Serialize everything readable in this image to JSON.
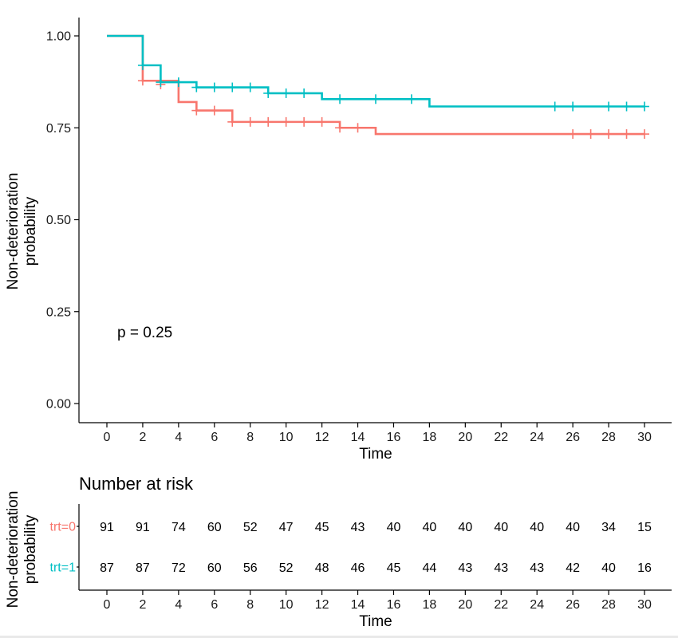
{
  "chart_data": [
    {
      "type": "line",
      "subtype": "kaplan-meier",
      "ylabel_line1": "Non-deterioration",
      "ylabel_line2": "probability",
      "xlabel": "Time",
      "xlim": [
        0,
        30
      ],
      "ylim": [
        0,
        1
      ],
      "x_ticks": [
        "0",
        "2",
        "4",
        "6",
        "8",
        "10",
        "12",
        "14",
        "16",
        "18",
        "20",
        "22",
        "24",
        "26",
        "28",
        "30"
      ],
      "y_ticks": [
        {
          "value": 0,
          "label": "0.00"
        },
        {
          "value": 0.25,
          "label": "0.25"
        },
        {
          "value": 0.5,
          "label": "0.50"
        },
        {
          "value": 0.75,
          "label": "0.75"
        },
        {
          "value": 1,
          "label": "1.00"
        }
      ],
      "annotation": "p = 0.25",
      "grid": false,
      "legend": "none",
      "series": [
        {
          "color": "#F8766D",
          "steps": [
            [
              0,
              1.0
            ],
            [
              2,
              0.878
            ],
            [
              4,
              0.82
            ],
            [
              5,
              0.797
            ],
            [
              7,
              0.766
            ],
            [
              13,
              0.75
            ],
            [
              15,
              0.733
            ],
            [
              30,
              0.733
            ]
          ],
          "censored": [
            [
              2,
              0.878
            ],
            [
              3,
              0.868
            ],
            [
              5,
              0.797
            ],
            [
              6,
              0.797
            ],
            [
              7,
              0.766
            ],
            [
              8,
              0.766
            ],
            [
              9,
              0.766
            ],
            [
              10,
              0.766
            ],
            [
              11,
              0.766
            ],
            [
              12,
              0.766
            ],
            [
              13,
              0.75
            ],
            [
              14,
              0.75
            ],
            [
              26,
              0.733
            ],
            [
              27,
              0.733
            ],
            [
              28,
              0.733
            ],
            [
              29,
              0.733
            ],
            [
              30,
              0.733
            ]
          ]
        },
        {
          "color": "#00BFC4",
          "steps": [
            [
              0,
              1.0
            ],
            [
              2,
              0.92
            ],
            [
              3,
              0.874
            ],
            [
              5,
              0.86
            ],
            [
              9,
              0.844
            ],
            [
              12,
              0.828
            ],
            [
              18,
              0.808
            ],
            [
              30,
              0.808
            ]
          ],
          "censored": [
            [
              2,
              0.92
            ],
            [
              3,
              0.874
            ],
            [
              4,
              0.874
            ],
            [
              5,
              0.86
            ],
            [
              6,
              0.86
            ],
            [
              7,
              0.86
            ],
            [
              8,
              0.86
            ],
            [
              9,
              0.844
            ],
            [
              10,
              0.844
            ],
            [
              11,
              0.844
            ],
            [
              13,
              0.828
            ],
            [
              15,
              0.828
            ],
            [
              17,
              0.828
            ],
            [
              25,
              0.808
            ],
            [
              26,
              0.808
            ],
            [
              28,
              0.808
            ],
            [
              29,
              0.808
            ],
            [
              30,
              0.808
            ]
          ]
        }
      ]
    },
    {
      "type": "table",
      "title": "Number at risk",
      "ylabel_line1": "Non-deterioration",
      "ylabel_line2": "probability",
      "xlabel": "Time",
      "x_ticks": [
        "0",
        "2",
        "4",
        "6",
        "8",
        "10",
        "12",
        "14",
        "16",
        "18",
        "20",
        "22",
        "24",
        "26",
        "28",
        "30"
      ],
      "rows": [
        {
          "label": "trt=0",
          "color": "#F8766D",
          "values": [
            "91",
            "91",
            "74",
            "60",
            "52",
            "47",
            "45",
            "43",
            "40",
            "40",
            "40",
            "40",
            "40",
            "40",
            "34",
            "15"
          ]
        },
        {
          "label": "trt=1",
          "color": "#00BFC4",
          "values": [
            "87",
            "87",
            "72",
            "60",
            "56",
            "52",
            "48",
            "46",
            "45",
            "44",
            "43",
            "43",
            "43",
            "42",
            "40",
            "16"
          ]
        }
      ]
    }
  ]
}
